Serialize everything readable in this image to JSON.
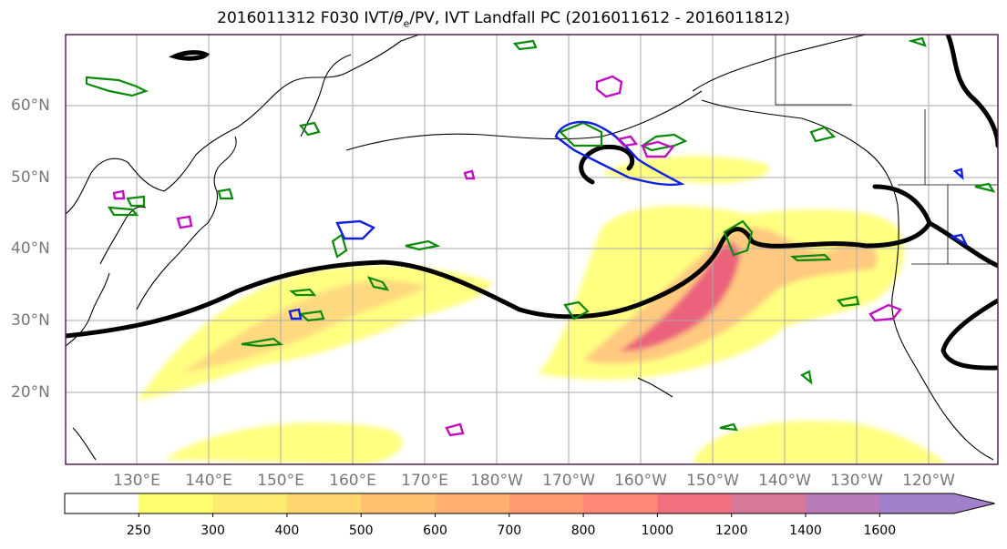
{
  "title": "2016011312 F030 IVT/θe/PV, IVT Landfall PC (2016011612 - 2016011812)",
  "title_parts": {
    "prefix": "2016011312 F030 IVT/",
    "theta": "θ",
    "sub": "e",
    "suffix": "/PV, IVT Landfall PC (2016011612 - 2016011812)"
  },
  "map": {
    "lat_labels": [
      "60°N",
      "50°N",
      "40°N",
      "30°N",
      "20°N"
    ],
    "lon_labels": [
      "130°E",
      "140°E",
      "150°E",
      "160°E",
      "170°E",
      "180°W",
      "170°W",
      "160°W",
      "150°W",
      "140°W",
      "130°W",
      "120°W"
    ],
    "colors": {
      "ivt_fill": "#ffff66",
      "ivt_core": "#e8507a",
      "theta_e": "#000000",
      "pv_green": "#0a8a0a",
      "pv_blue": "#1020e0",
      "pv_magenta": "#c010c0",
      "coast": "#000000",
      "grid": "#aaaaaa",
      "frame": "#552255"
    }
  },
  "colorbar": {
    "labels": [
      "250",
      "300",
      "400",
      "500",
      "600",
      "700",
      "800",
      "1000",
      "1200",
      "1400",
      "1600"
    ],
    "colors": [
      "#ffff70",
      "#ffea70",
      "#ffd570",
      "#ffc070",
      "#ffb070",
      "#ff9a70",
      "#ff8878",
      "#f07080",
      "#d87898",
      "#b87ab8",
      "#a080c8"
    ]
  }
}
